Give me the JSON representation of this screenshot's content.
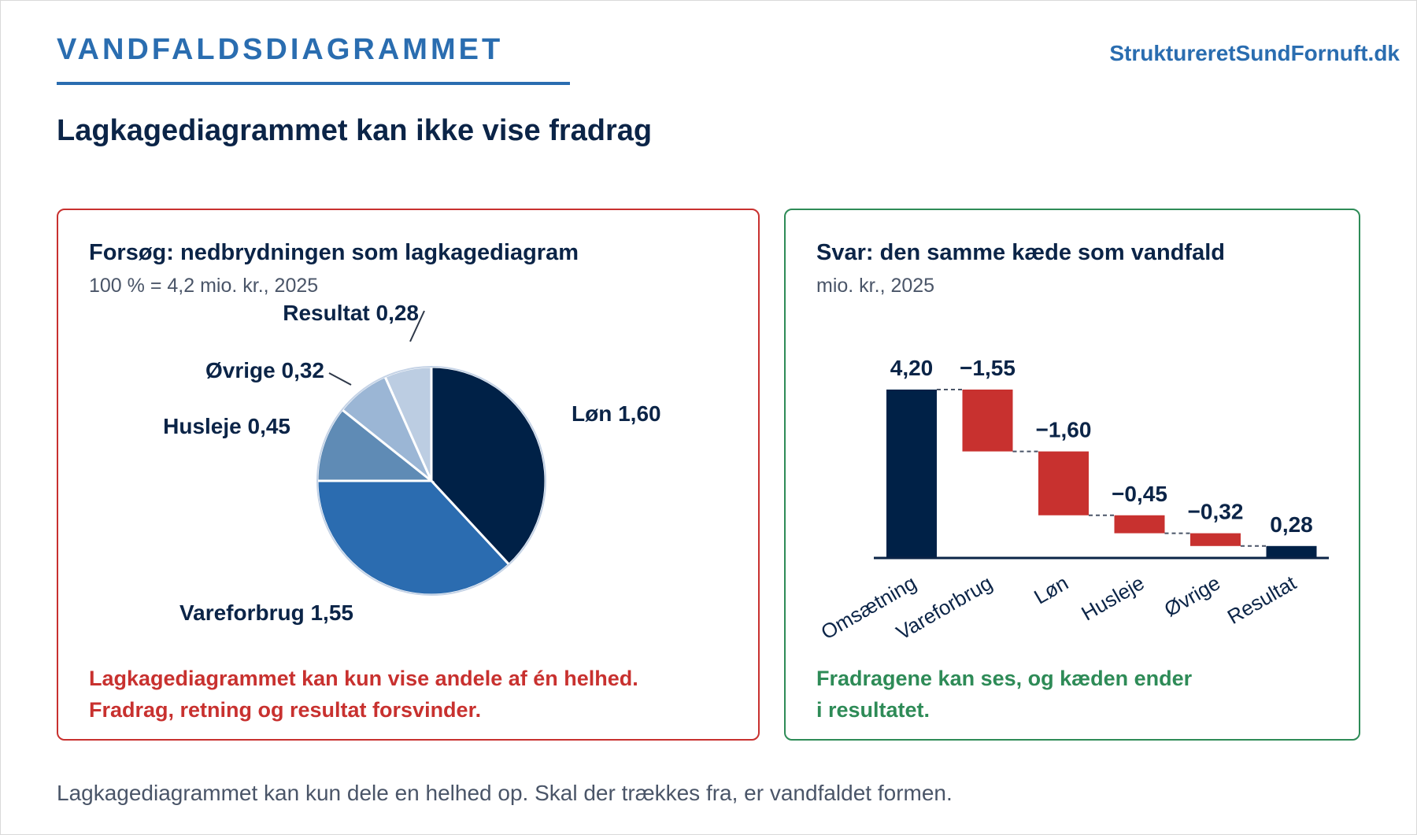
{
  "header": {
    "kicker": "VANDFALDSDIAGRAMMET",
    "brand": "StruktureretSundFornuft.dk",
    "headline": "Lagkagediagrammet kan ikke vise fradrag"
  },
  "left_panel": {
    "title": "Forsøg: nedbrydningen som lagkagediagram",
    "subtitle": "100 % = 4,2 mio. kr., 2025",
    "note_line1": "Lagkagediagrammet kan kun vise andele af én helhed.",
    "note_line2": "Fradrag, retning og resultat forsvinder."
  },
  "right_panel": {
    "title": "Svar: den samme kæde som vandfald",
    "subtitle": "mio. kr., 2025",
    "note_line1": "Fradragene kan ses, og kæden ender",
    "note_line2": "i resultatet."
  },
  "footer": "Lagkagediagrammet kan kun dele en helhed op. Skal der trækkes fra, er vandfaldet formen.",
  "colors": {
    "navy": "#002147",
    "blue": "#2b6cb0",
    "red": "#c8312f",
    "green": "#2e8b57"
  },
  "chart_data": [
    {
      "type": "pie",
      "total": 4.2,
      "slices": [
        {
          "label": "Løn 1,60",
          "value": 1.6,
          "color": "#002147"
        },
        {
          "label": "Vareforbrug 1,55",
          "value": 1.55,
          "color": "#2b6cb0"
        },
        {
          "label": "Husleje 0,45",
          "value": 0.45,
          "color": "#5f8bb5"
        },
        {
          "label": "Øvrige 0,32",
          "value": 0.32,
          "color": "#9bb6d5"
        },
        {
          "label": "Resultat 0,28",
          "value": 0.28,
          "color": "#bccde2"
        }
      ]
    },
    {
      "type": "bar",
      "subtype": "waterfall",
      "categories": [
        "Omsætning",
        "Vareforbrug",
        "Løn",
        "Husleje",
        "Øvrige",
        "Resultat"
      ],
      "values": [
        4.2,
        -1.55,
        -1.6,
        -0.45,
        -0.32,
        0.28
      ],
      "value_labels": [
        "4,20",
        "−1,55",
        "−1,60",
        "−0,45",
        "−0,32",
        "0,28"
      ],
      "kinds": [
        "total",
        "delta",
        "delta",
        "delta",
        "delta",
        "total"
      ],
      "ylim": [
        0,
        4.2
      ]
    }
  ]
}
